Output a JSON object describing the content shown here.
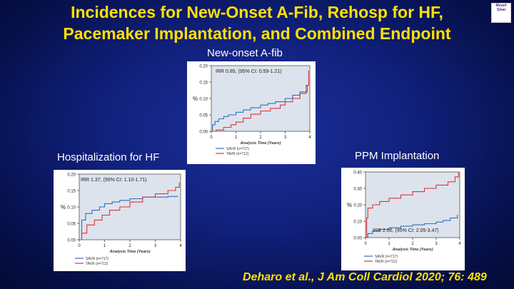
{
  "slide": {
    "title_line1": "Incidences for New-Onset A-Fib, Rehosp for HF,",
    "title_line2": "Pacemaker Implantation, and Combined Endpoint",
    "citation": "Deharo et al., J Am Coll Cardiol 2020; 76: 489",
    "logo_text": "Mount Sinai"
  },
  "colors": {
    "title": "#ffe000",
    "savr": "#2f6fbf",
    "tavr": "#e0323f",
    "plot_bg": "#dde3ec"
  },
  "chart_data": [
    {
      "id": "afib",
      "type": "line",
      "title": "New-onset A-fib",
      "annotation": "IRR 0.85, (95% CI: 0.59-1.21)",
      "ylabel": "%",
      "xlabel": "Analysis Time (Years)",
      "ylim": [
        0,
        0.2
      ],
      "xlim": [
        0,
        4
      ],
      "yticks": [
        "0.00",
        "0.05",
        "0.10",
        "0.15",
        "0.20"
      ],
      "ytick_values": [
        0,
        0.05,
        0.1,
        0.15,
        0.2
      ],
      "xticks": [
        "0",
        "1",
        "2",
        "3",
        "4"
      ],
      "xtick_values": [
        0,
        1,
        2,
        3,
        4
      ],
      "legend": [
        "SAVR (n=717)",
        "TAVR (n=712)"
      ],
      "series": [
        {
          "name": "SAVR (n=717)",
          "color": "#2f6fbf",
          "x": [
            0,
            0.05,
            0.15,
            0.3,
            0.5,
            0.7,
            1.0,
            1.3,
            1.6,
            2.0,
            2.3,
            2.6,
            3.0,
            3.3,
            3.6,
            3.9
          ],
          "y": [
            0,
            0.02,
            0.03,
            0.038,
            0.045,
            0.05,
            0.058,
            0.065,
            0.072,
            0.08,
            0.085,
            0.09,
            0.1,
            0.11,
            0.12,
            0.14
          ]
        },
        {
          "name": "TAVR (n=712)",
          "color": "#e0323f",
          "x": [
            0,
            0.2,
            0.5,
            0.8,
            1.0,
            1.3,
            1.6,
            2.0,
            2.4,
            2.8,
            3.0,
            3.3,
            3.6,
            3.85,
            3.95
          ],
          "y": [
            0,
            0.004,
            0.012,
            0.02,
            0.028,
            0.04,
            0.052,
            0.062,
            0.07,
            0.08,
            0.09,
            0.1,
            0.115,
            0.14,
            0.185
          ]
        }
      ]
    },
    {
      "id": "hf",
      "type": "line",
      "title": "Hospitalization for HF",
      "annotation": "IRR 1.37, (95% CI: 1.10-1.71)",
      "ylabel": "%",
      "xlabel": "Analysis Time (Years)",
      "ylim": [
        0,
        0.2
      ],
      "xlim": [
        0,
        4
      ],
      "yticks": [
        "0.00",
        "0.05",
        "0.10",
        "0.15",
        "0.20"
      ],
      "ytick_values": [
        0,
        0.05,
        0.1,
        0.15,
        0.2
      ],
      "xticks": [
        "0",
        "1",
        "2",
        "3",
        "4"
      ],
      "xtick_values": [
        0,
        1,
        2,
        3,
        4
      ],
      "legend": [
        "SAVR (n=717)",
        "TAVR (n=712)"
      ],
      "series": [
        {
          "name": "SAVR (n=717)",
          "color": "#2f6fbf",
          "x": [
            0,
            0.1,
            0.25,
            0.5,
            0.8,
            1.0,
            1.3,
            1.6,
            2.0,
            2.5,
            3.0,
            3.5,
            3.9
          ],
          "y": [
            0,
            0.06,
            0.08,
            0.09,
            0.1,
            0.11,
            0.115,
            0.12,
            0.125,
            0.13,
            0.13,
            0.132,
            0.132
          ]
        },
        {
          "name": "TAVR (n=712)",
          "color": "#e0323f",
          "x": [
            0,
            0.1,
            0.3,
            0.6,
            0.9,
            1.2,
            1.6,
            2.0,
            2.5,
            3.0,
            3.5,
            3.8,
            3.95
          ],
          "y": [
            0,
            0.02,
            0.045,
            0.06,
            0.075,
            0.09,
            0.1,
            0.115,
            0.13,
            0.14,
            0.15,
            0.16,
            0.175
          ]
        }
      ]
    },
    {
      "id": "ppm",
      "type": "line",
      "title": "PPM Implantation",
      "annotation": "IRR 2.66, (95% CI: 2.05-3.47)",
      "ylabel": "%",
      "xlabel": "Analysis Time (Years)",
      "ylim": [
        0,
        0.4
      ],
      "xlim": [
        0,
        4
      ],
      "yticks": [
        "0.00",
        "0.10",
        "0.20",
        "0.30",
        "0.40"
      ],
      "ytick_values": [
        0,
        0.1,
        0.2,
        0.3,
        0.4
      ],
      "xticks": [
        "0",
        "1",
        "2",
        "3",
        "4"
      ],
      "xtick_values": [
        0,
        1,
        2,
        3,
        4
      ],
      "legend": [
        "SAVR (n=717)",
        "TAVR (n=712)"
      ],
      "series": [
        {
          "name": "SAVR (n=717)",
          "color": "#2f6fbf",
          "x": [
            0,
            0.1,
            0.3,
            0.6,
            1.0,
            1.5,
            2.0,
            2.5,
            3.0,
            3.3,
            3.6,
            3.9
          ],
          "y": [
            0,
            0.025,
            0.04,
            0.05,
            0.06,
            0.07,
            0.078,
            0.085,
            0.095,
            0.105,
            0.12,
            0.14
          ]
        },
        {
          "name": "TAVR (n=712)",
          "color": "#e0323f",
          "x": [
            0,
            0.05,
            0.1,
            0.3,
            0.6,
            1.0,
            1.5,
            2.0,
            2.5,
            3.0,
            3.5,
            3.8,
            3.95
          ],
          "y": [
            0,
            0.12,
            0.18,
            0.2,
            0.22,
            0.24,
            0.26,
            0.28,
            0.3,
            0.32,
            0.34,
            0.37,
            0.4
          ]
        }
      ]
    }
  ]
}
